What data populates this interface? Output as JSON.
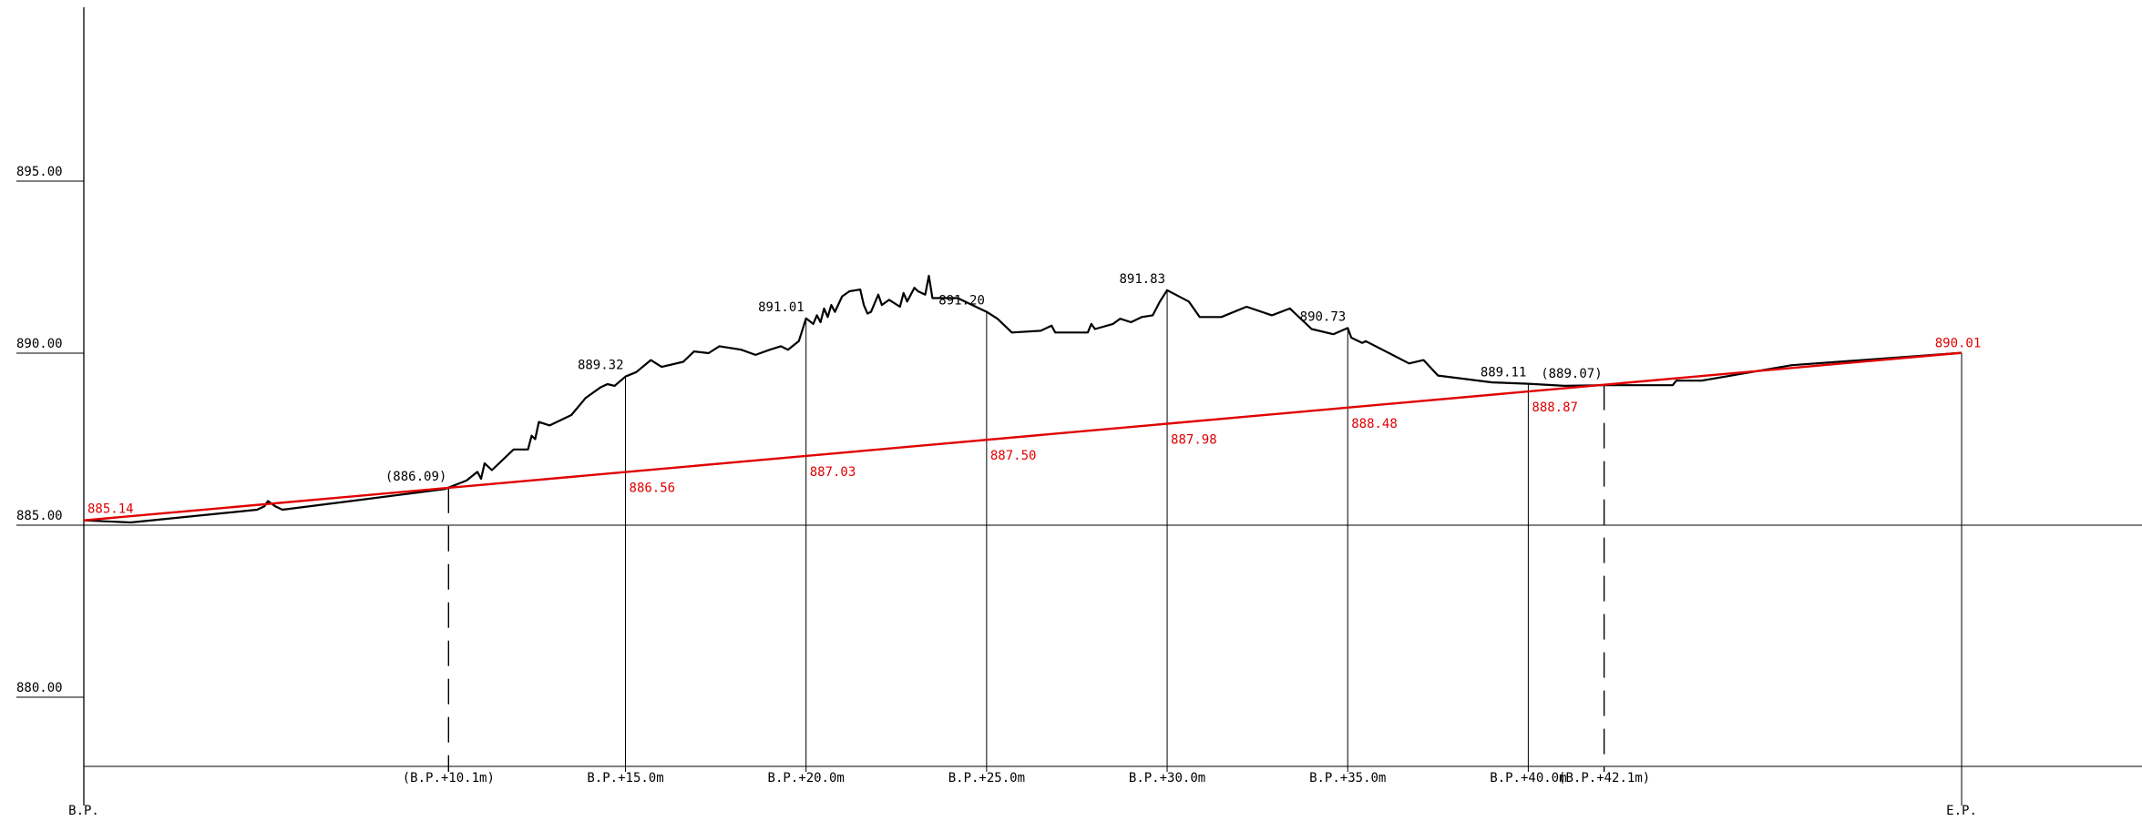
{
  "colors": {
    "ground": "#000000",
    "design": "#e00000",
    "axis": "#000000"
  },
  "elevation_axis": {
    "ticks": [
      {
        "value": 895.0,
        "label": "895.00"
      },
      {
        "value": 890.0,
        "label": "890.00"
      },
      {
        "value": 885.0,
        "label": "885.00"
      },
      {
        "value": 880.0,
        "label": "880.00"
      }
    ]
  },
  "stations": [
    {
      "chainage": 0.0,
      "label": "B.P.",
      "design": "885.14",
      "ground": "",
      "dashed": false,
      "label_row": 2
    },
    {
      "chainage": 10.1,
      "label": "(B.P.+10.1m)",
      "design": "",
      "ground": "(886.09)",
      "dashed": true,
      "label_row": 1
    },
    {
      "chainage": 15.0,
      "label": "B.P.+15.0m",
      "design": "886.56",
      "ground": "889.32",
      "dashed": false,
      "label_row": 1
    },
    {
      "chainage": 20.0,
      "label": "B.P.+20.0m",
      "design": "887.03",
      "ground": "891.01",
      "dashed": false,
      "label_row": 1
    },
    {
      "chainage": 25.0,
      "label": "B.P.+25.0m",
      "design": "887.50",
      "ground": "891.20",
      "dashed": false,
      "label_row": 1
    },
    {
      "chainage": 30.0,
      "label": "B.P.+30.0m",
      "design": "887.98",
      "ground": "891.83",
      "dashed": false,
      "label_row": 1
    },
    {
      "chainage": 35.0,
      "label": "B.P.+35.0m",
      "design": "888.48",
      "ground": "890.73",
      "dashed": false,
      "label_row": 1
    },
    {
      "chainage": 40.0,
      "label": "B.P.+40.0m",
      "design": "888.87",
      "ground": "889.11",
      "dashed": false,
      "label_row": 1
    },
    {
      "chainage": 42.1,
      "label": "(B.P.+42.1m)",
      "design": "",
      "ground": "(889.07)",
      "dashed": true,
      "label_row": 1
    },
    {
      "chainage": 52.0,
      "label": "E.P.",
      "design": "890.01",
      "ground": "",
      "dashed": false,
      "label_row": 2
    }
  ],
  "design_line": {
    "start": {
      "chainage": 0.0,
      "elevation": 885.14
    },
    "end": {
      "chainage": 52.0,
      "elevation": 890.01
    }
  },
  "ground_profile": [
    [
      0.0,
      885.14
    ],
    [
      1.3,
      885.08
    ],
    [
      4.8,
      885.45
    ],
    [
      5.0,
      885.55
    ],
    [
      5.1,
      885.7
    ],
    [
      5.3,
      885.55
    ],
    [
      5.5,
      885.45
    ],
    [
      10.0,
      886.05
    ],
    [
      10.6,
      886.3
    ],
    [
      10.9,
      886.55
    ],
    [
      11.0,
      886.35
    ],
    [
      11.1,
      886.8
    ],
    [
      11.3,
      886.6
    ],
    [
      11.5,
      886.8
    ],
    [
      11.9,
      887.2
    ],
    [
      12.3,
      887.2
    ],
    [
      12.4,
      887.6
    ],
    [
      12.5,
      887.5
    ],
    [
      12.6,
      888.0
    ],
    [
      12.9,
      887.9
    ],
    [
      13.5,
      888.2
    ],
    [
      13.9,
      888.7
    ],
    [
      14.3,
      889.0
    ],
    [
      14.5,
      889.1
    ],
    [
      14.7,
      889.05
    ],
    [
      15.0,
      889.32
    ],
    [
      15.3,
      889.45
    ],
    [
      15.7,
      889.8
    ],
    [
      16.0,
      889.6
    ],
    [
      16.6,
      889.75
    ],
    [
      16.9,
      890.05
    ],
    [
      17.3,
      890.0
    ],
    [
      17.6,
      890.2
    ],
    [
      18.2,
      890.1
    ],
    [
      18.6,
      889.95
    ],
    [
      19.0,
      890.1
    ],
    [
      19.3,
      890.2
    ],
    [
      19.5,
      890.1
    ],
    [
      19.8,
      890.35
    ],
    [
      20.0,
      891.01
    ],
    [
      20.2,
      890.85
    ],
    [
      20.3,
      891.1
    ],
    [
      20.4,
      890.9
    ],
    [
      20.5,
      891.3
    ],
    [
      20.6,
      891.05
    ],
    [
      20.7,
      891.4
    ],
    [
      20.8,
      891.2
    ],
    [
      21.0,
      891.65
    ],
    [
      21.2,
      891.8
    ],
    [
      21.5,
      891.85
    ],
    [
      21.6,
      891.4
    ],
    [
      21.7,
      891.15
    ],
    [
      21.8,
      891.2
    ],
    [
      22.0,
      891.7
    ],
    [
      22.1,
      891.4
    ],
    [
      22.3,
      891.55
    ],
    [
      22.6,
      891.35
    ],
    [
      22.7,
      891.75
    ],
    [
      22.8,
      891.5
    ],
    [
      23.0,
      891.9
    ],
    [
      23.1,
      891.8
    ],
    [
      23.3,
      891.7
    ],
    [
      23.4,
      892.25
    ],
    [
      23.5,
      891.6
    ],
    [
      24.2,
      891.6
    ],
    [
      24.8,
      891.3
    ],
    [
      25.0,
      891.2
    ],
    [
      25.3,
      891.0
    ],
    [
      25.7,
      890.6
    ],
    [
      26.5,
      890.65
    ],
    [
      26.8,
      890.8
    ],
    [
      26.9,
      890.6
    ],
    [
      27.8,
      890.6
    ],
    [
      27.9,
      890.85
    ],
    [
      28.0,
      890.7
    ],
    [
      28.5,
      890.85
    ],
    [
      28.7,
      891.0
    ],
    [
      29.0,
      890.9
    ],
    [
      29.3,
      891.05
    ],
    [
      29.6,
      891.1
    ],
    [
      29.8,
      891.5
    ],
    [
      30.0,
      891.83
    ],
    [
      30.6,
      891.5
    ],
    [
      30.9,
      891.05
    ],
    [
      31.5,
      891.05
    ],
    [
      32.2,
      891.35
    ],
    [
      32.9,
      891.1
    ],
    [
      33.4,
      891.3
    ],
    [
      34.0,
      890.7
    ],
    [
      34.6,
      890.55
    ],
    [
      35.0,
      890.73
    ],
    [
      35.1,
      890.45
    ],
    [
      35.4,
      890.3
    ],
    [
      35.5,
      890.35
    ],
    [
      36.7,
      889.7
    ],
    [
      37.1,
      889.8
    ],
    [
      37.5,
      889.35
    ],
    [
      39.0,
      889.15
    ],
    [
      40.0,
      889.11
    ],
    [
      41.0,
      889.05
    ],
    [
      42.1,
      889.07
    ],
    [
      44.0,
      889.07
    ],
    [
      44.1,
      889.2
    ],
    [
      44.8,
      889.2
    ],
    [
      47.3,
      889.65
    ],
    [
      52.0,
      890.01
    ]
  ]
}
